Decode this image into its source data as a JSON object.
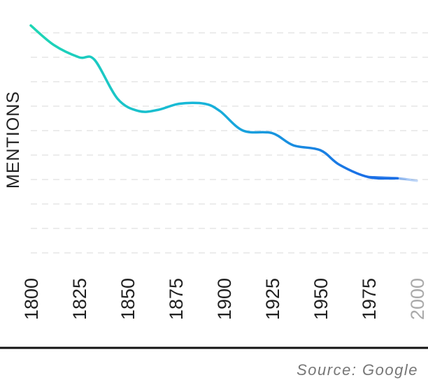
{
  "chart_data": {
    "type": "line",
    "ylabel": "MENTIONS",
    "xlabel": "",
    "title": "",
    "x_ticks": [
      1800,
      1825,
      1850,
      1875,
      1900,
      1925,
      1950,
      1975,
      2000
    ],
    "future_ticks": [
      2000
    ],
    "xlim": [
      1800,
      2000
    ],
    "ylim": [
      0,
      10
    ],
    "grid": "horizontal dashed",
    "y_ticks_visible": false,
    "series": [
      {
        "x": [
          1800,
          1812,
          1825,
          1833,
          1845,
          1856,
          1866,
          1877,
          1890,
          1898,
          1910,
          1925,
          1936,
          1950,
          1960,
          1975,
          1990,
          2000
        ],
        "y": [
          9.3,
          8.5,
          8.0,
          7.9,
          6.3,
          5.8,
          5.85,
          6.1,
          6.1,
          5.8,
          5.0,
          4.9,
          4.4,
          4.2,
          3.6,
          3.1,
          3.05,
          2.95
        ]
      }
    ],
    "gradient": [
      "#1ed6b4",
      "#17b6d9",
      "#1a6fe6"
    ],
    "projection_from": 1983
  },
  "source_text": "Source: Google"
}
